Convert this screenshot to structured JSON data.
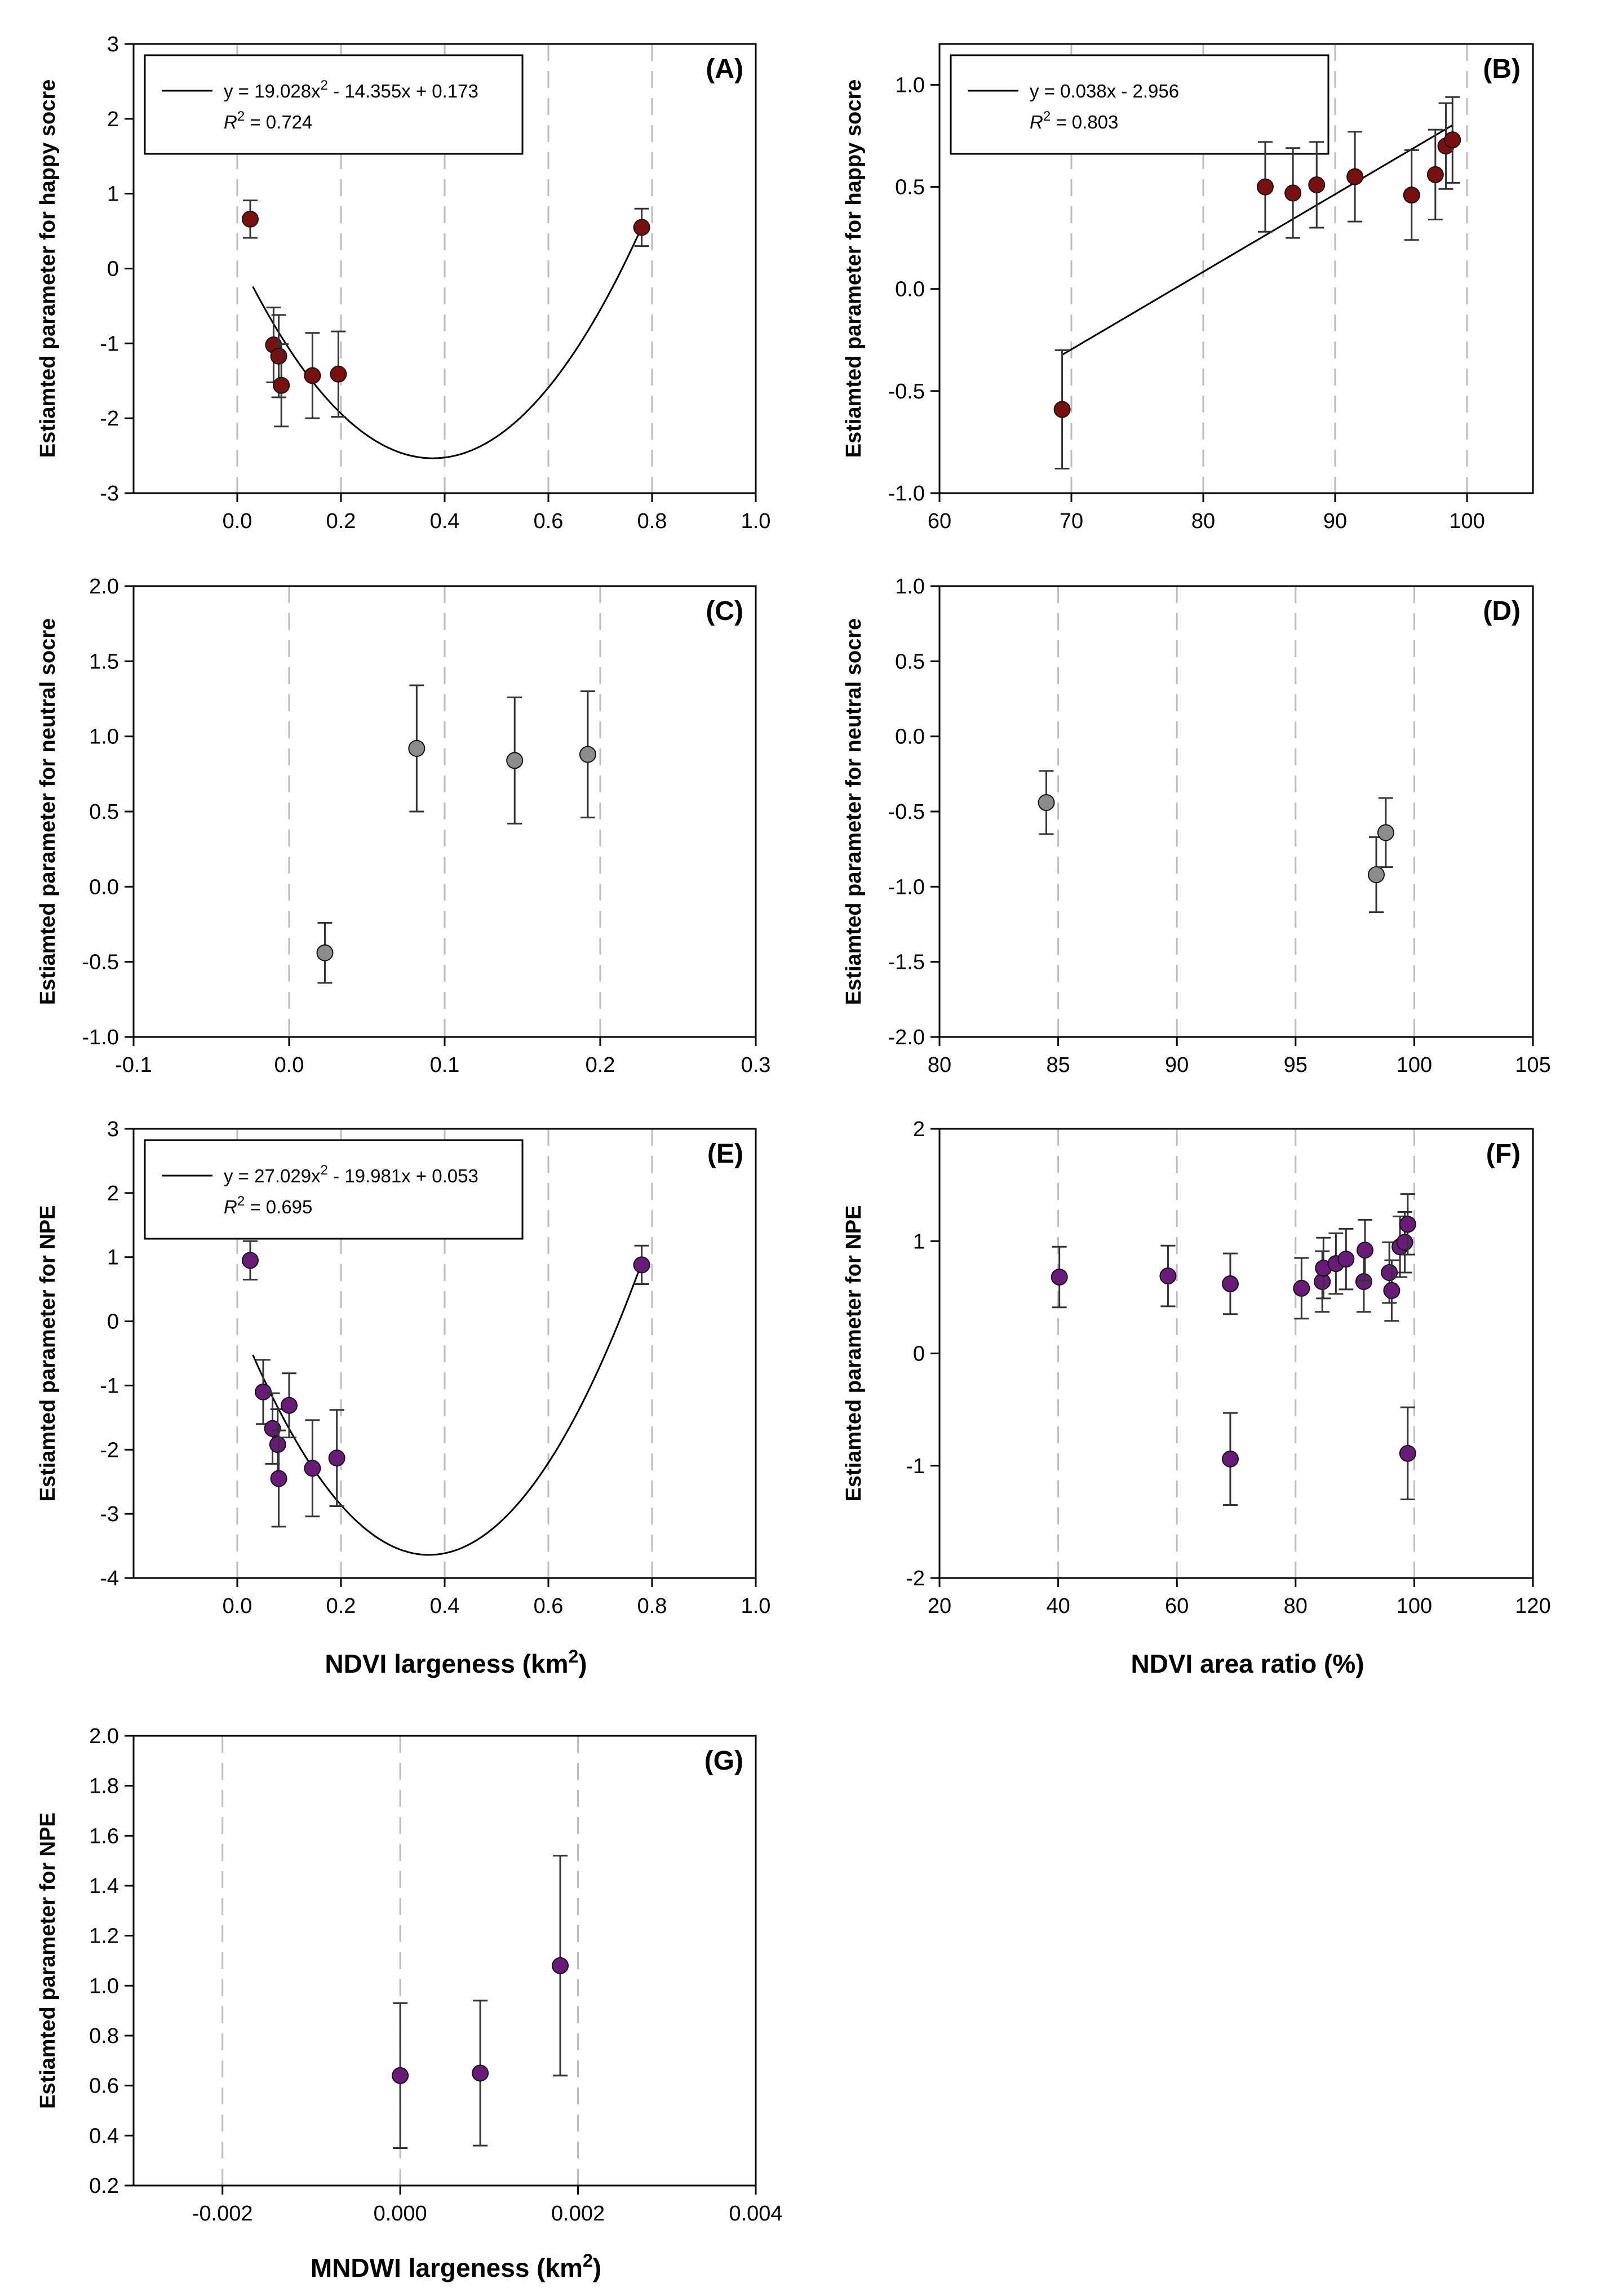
{
  "chart_data": [
    {
      "panel": "(A)",
      "type": "scatter",
      "ylabel": "Estiamted parameter for happy socre",
      "xlabel": "",
      "xlim": [
        -0.2,
        1.0
      ],
      "ylim": [
        -3,
        3
      ],
      "xticks": [
        "0.0",
        "0.2",
        "0.4",
        "0.6",
        "0.8",
        "1.0"
      ],
      "yticks": [
        "-3",
        "-2",
        "-1",
        "0",
        "1",
        "2",
        "3"
      ],
      "vgrid": [
        0.0,
        0.2,
        0.4,
        0.6,
        0.8
      ],
      "color": "#7a0f0f",
      "points": [
        {
          "x": 0.025,
          "y": 0.66,
          "err": 0.25
        },
        {
          "x": 0.07,
          "y": -1.02,
          "err": 0.5
        },
        {
          "x": 0.08,
          "y": -1.17,
          "err": 0.55
        },
        {
          "x": 0.085,
          "y": -1.56,
          "err": 0.55
        },
        {
          "x": 0.145,
          "y": -1.43,
          "err": 0.57
        },
        {
          "x": 0.195,
          "y": -1.41,
          "err": 0.57
        },
        {
          "x": 0.78,
          "y": 0.55,
          "err": 0.25
        }
      ],
      "fit": {
        "kind": "quadratic",
        "a": 19.028,
        "b": -14.355,
        "c": 0.173,
        "xrange": [
          0.03,
          0.78
        ]
      },
      "legend": {
        "line1a": "y = 19.028x",
        "line1sup": "2",
        "line1b": " - 14.355x + 0.173",
        "r2pre": "R",
        "r2sup": "2",
        "r2val": " = 0.724"
      }
    },
    {
      "panel": "(B)",
      "type": "scatter",
      "ylabel": "Estiamted parameter for happy socre",
      "xlabel": "",
      "xlim": [
        60,
        105
      ],
      "ylim": [
        -1.0,
        1.2
      ],
      "xticks": [
        "60",
        "70",
        "80",
        "90",
        "100"
      ],
      "yticks": [
        "-1.0",
        "-0.5",
        "0.0",
        "0.5",
        "1.0"
      ],
      "vgrid": [
        70,
        80,
        90,
        100
      ],
      "color": "#7a0f0f",
      "points": [
        {
          "x": 69.3,
          "y": -0.59,
          "err": 0.29
        },
        {
          "x": 84.7,
          "y": 0.5,
          "err": 0.22
        },
        {
          "x": 86.8,
          "y": 0.47,
          "err": 0.22
        },
        {
          "x": 88.6,
          "y": 0.51,
          "err": 0.21
        },
        {
          "x": 91.5,
          "y": 0.55,
          "err": 0.22
        },
        {
          "x": 95.8,
          "y": 0.46,
          "err": 0.22
        },
        {
          "x": 97.6,
          "y": 0.56,
          "err": 0.22
        },
        {
          "x": 98.4,
          "y": 0.7,
          "err": 0.21
        },
        {
          "x": 98.9,
          "y": 0.73,
          "err": 0.21
        }
      ],
      "fit": {
        "kind": "linear",
        "a": 0.038,
        "b": -2.956,
        "xrange": [
          69.3,
          98.9
        ]
      },
      "legend": {
        "line1a": "y = 0.038x - 2.956",
        "line1sup": "",
        "line1b": "",
        "r2pre": "R",
        "r2sup": "2",
        "r2val": " = 0.803"
      }
    },
    {
      "panel": "(C)",
      "type": "scatter",
      "ylabel": "Estiamted parameter for neutral socre",
      "xlabel": "",
      "xlim": [
        -0.1,
        0.3
      ],
      "ylim": [
        -1.0,
        2.0
      ],
      "xticks": [
        "-0.1",
        "0.0",
        "0.1",
        "0.2",
        "0.3"
      ],
      "yticks": [
        "-1.0",
        "-0.5",
        "0.0",
        "0.5",
        "1.0",
        "1.5",
        "2.0"
      ],
      "vgrid": [
        0.0,
        0.1,
        0.2
      ],
      "color": "#8c8c8c",
      "points": [
        {
          "x": 0.023,
          "y": -0.44,
          "err": 0.2
        },
        {
          "x": 0.082,
          "y": 0.92,
          "err": 0.42
        },
        {
          "x": 0.145,
          "y": 0.84,
          "err": 0.42
        },
        {
          "x": 0.192,
          "y": 0.88,
          "err": 0.42
        }
      ],
      "fit": null,
      "legend": null
    },
    {
      "panel": "(D)",
      "type": "scatter",
      "ylabel": "Estiamted parameter for neutral socre",
      "xlabel": "",
      "xlim": [
        80,
        105
      ],
      "ylim": [
        -2.0,
        1.0
      ],
      "xticks": [
        "80",
        "85",
        "90",
        "95",
        "100",
        "105"
      ],
      "yticks": [
        "-2.0",
        "-1.5",
        "-1.0",
        "-0.5",
        "0.0",
        "0.5",
        "1.0"
      ],
      "vgrid": [
        85,
        90,
        95,
        100
      ],
      "color": "#8c8c8c",
      "points": [
        {
          "x": 84.5,
          "y": -0.44,
          "err": 0.21
        },
        {
          "x": 98.4,
          "y": -0.92,
          "err": 0.25
        },
        {
          "x": 98.8,
          "y": -0.64,
          "err": 0.23
        }
      ],
      "fit": null,
      "legend": null
    },
    {
      "panel": "(E)",
      "type": "scatter",
      "ylabel": "Estiamted parameter for NPE",
      "xlabel": "NDVI largeness (km",
      "xlabel_sup": "2",
      "xlabel_end": ")",
      "xlim": [
        -0.2,
        1.0
      ],
      "ylim": [
        -4,
        3
      ],
      "xticks": [
        "0.0",
        "0.2",
        "0.4",
        "0.6",
        "0.8",
        "1.0"
      ],
      "yticks": [
        "-4",
        "-3",
        "-2",
        "-1",
        "0",
        "1",
        "2",
        "3"
      ],
      "vgrid": [
        0.0,
        0.2,
        0.4,
        0.6,
        0.8
      ],
      "color": "#6a1b7a",
      "points": [
        {
          "x": 0.025,
          "y": 0.95,
          "err": 0.3
        },
        {
          "x": 0.05,
          "y": -1.1,
          "err": 0.5
        },
        {
          "x": 0.068,
          "y": -1.67,
          "err": 0.55
        },
        {
          "x": 0.078,
          "y": -1.92,
          "err": 0.55
        },
        {
          "x": 0.08,
          "y": -2.45,
          "err": 0.75
        },
        {
          "x": 0.1,
          "y": -1.31,
          "err": 0.5
        },
        {
          "x": 0.145,
          "y": -2.29,
          "err": 0.75
        },
        {
          "x": 0.192,
          "y": -2.13,
          "err": 0.75
        },
        {
          "x": 0.78,
          "y": 0.88,
          "err": 0.3
        }
      ],
      "fit": {
        "kind": "quadratic",
        "a": 27.029,
        "b": -19.981,
        "c": 0.053,
        "xrange": [
          0.03,
          0.78
        ]
      },
      "legend": {
        "line1a": "y = 27.029x",
        "line1sup": "2",
        "line1b": " - 19.981x + 0.053",
        "r2pre": "R",
        "r2sup": "2",
        "r2val": " = 0.695"
      }
    },
    {
      "panel": "(F)",
      "type": "scatter",
      "ylabel": "Estiamted parameter for NPE",
      "xlabel": "NDVI area ratio (%)",
      "xlabel_sup": "",
      "xlabel_end": "",
      "xlim": [
        20,
        120
      ],
      "ylim": [
        -2,
        2
      ],
      "xticks": [
        "20",
        "40",
        "60",
        "80",
        "100",
        "120"
      ],
      "yticks": [
        "-2",
        "-1",
        "0",
        "1",
        "2"
      ],
      "vgrid": [
        40,
        60,
        80,
        100
      ],
      "color": "#6a1b7a",
      "points": [
        {
          "x": 40.2,
          "y": 0.68,
          "err": 0.27
        },
        {
          "x": 58.5,
          "y": 0.69,
          "err": 0.27
        },
        {
          "x": 69.0,
          "y": 0.62,
          "err": 0.27
        },
        {
          "x": 69.0,
          "y": -0.94,
          "err": 0.41
        },
        {
          "x": 81.0,
          "y": 0.58,
          "err": 0.27
        },
        {
          "x": 84.5,
          "y": 0.64,
          "err": 0.27
        },
        {
          "x": 84.7,
          "y": 0.76,
          "err": 0.27
        },
        {
          "x": 86.8,
          "y": 0.8,
          "err": 0.27
        },
        {
          "x": 88.5,
          "y": 0.84,
          "err": 0.27
        },
        {
          "x": 91.5,
          "y": 0.64,
          "err": 0.27
        },
        {
          "x": 91.7,
          "y": 0.92,
          "err": 0.27
        },
        {
          "x": 95.8,
          "y": 0.72,
          "err": 0.27
        },
        {
          "x": 96.2,
          "y": 0.56,
          "err": 0.27
        },
        {
          "x": 97.6,
          "y": 0.95,
          "err": 0.27
        },
        {
          "x": 98.4,
          "y": 0.99,
          "err": 0.27
        },
        {
          "x": 98.9,
          "y": 1.15,
          "err": 0.27
        },
        {
          "x": 98.9,
          "y": -0.89,
          "err": 0.41
        }
      ],
      "fit": null,
      "legend": null
    },
    {
      "panel": "(G)",
      "type": "scatter",
      "ylabel": "Estiamted parameter for NPE",
      "xlabel": "MNDWI largeness (km",
      "xlabel_sup": "2",
      "xlabel_end": ")",
      "xlim": [
        -0.003,
        0.004
      ],
      "ylim": [
        0.2,
        2.0
      ],
      "xticks": [
        "-0.002",
        "0.000",
        "0.002",
        "0.004"
      ],
      "yticks": [
        "0.2",
        "0.4",
        "0.6",
        "0.8",
        "1.0",
        "1.2",
        "1.4",
        "1.6",
        "1.8",
        "2.0"
      ],
      "vgrid": [
        -0.002,
        0.0,
        0.002
      ],
      "color": "#6a1b7a",
      "points": [
        {
          "x": 0.0,
          "y": 0.64,
          "err": 0.29
        },
        {
          "x": 0.0009,
          "y": 0.65,
          "err": 0.29
        },
        {
          "x": 0.0018,
          "y": 1.08,
          "err": 0.44
        }
      ],
      "fit": null,
      "legend": null
    }
  ]
}
